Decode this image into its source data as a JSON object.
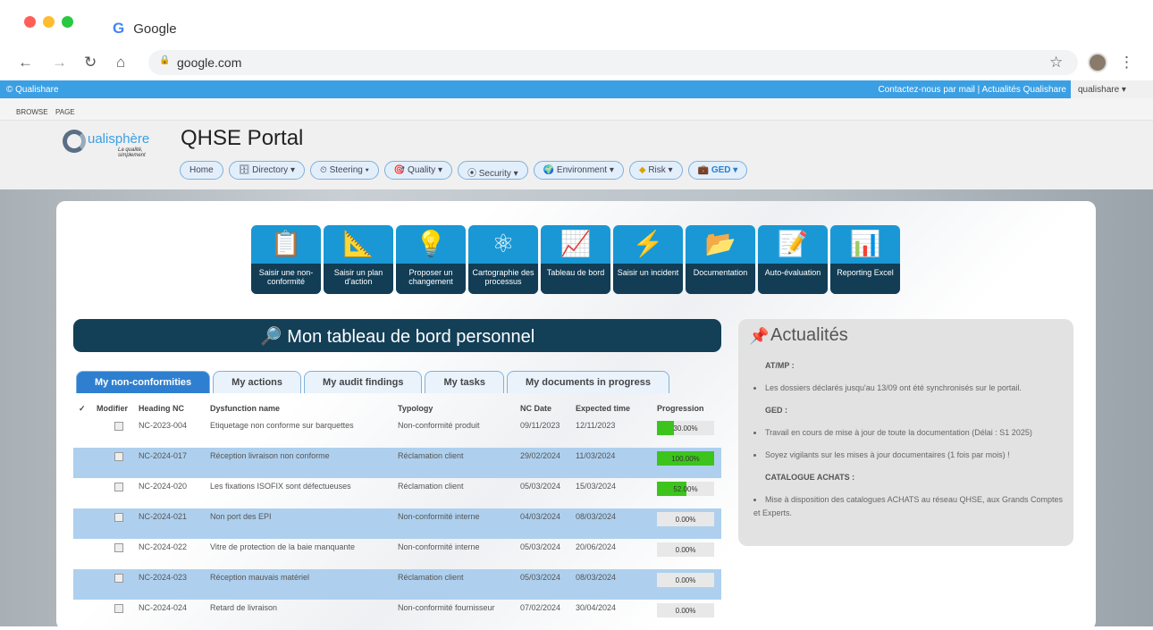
{
  "browser": {
    "tab_title": "Google",
    "url": "google.com"
  },
  "topbar": {
    "brand": "© Qualishare",
    "links": "Contactez-nous par mail | Actualités Qualishare",
    "user": "qualishare ▾"
  },
  "ribbon": {
    "browse": "BROWSE",
    "page": "PAGE"
  },
  "header": {
    "logo_text": "ualisphère",
    "logo_tagline": "La qualité, simplement",
    "title": "QHSE Portal",
    "menu": [
      {
        "label": "Home"
      },
      {
        "label": "Directory ▾",
        "icon": "🗄"
      },
      {
        "label": "Steering ▾",
        "icon": "⏲"
      },
      {
        "label": "Quality ▾",
        "icon": "🎯"
      },
      {
        "label": "Security ▾",
        "icon": "⦿"
      },
      {
        "label": "Environment ▾",
        "icon": "🌍"
      },
      {
        "label": "Risk ▾",
        "icon": "◆"
      },
      {
        "label": "GED ▾",
        "icon": "💼"
      }
    ]
  },
  "tiles": [
    {
      "icon": "📋",
      "label": "Saisir une non-conformité"
    },
    {
      "icon": "📐",
      "label": "Saisir un plan d'action"
    },
    {
      "icon": "💡",
      "label": "Proposer un changement"
    },
    {
      "icon": "⚛",
      "label": "Cartographie des processus"
    },
    {
      "icon": "📈",
      "label": "Tableau de bord"
    },
    {
      "icon": "⚡",
      "label": "Saisir un incident"
    },
    {
      "icon": "📂",
      "label": "Documentation"
    },
    {
      "icon": "📝",
      "label": "Auto-évaluation"
    },
    {
      "icon": "📊",
      "label": "Reporting Excel"
    }
  ],
  "dashboard": {
    "title": "🔎 Mon tableau de bord personnel"
  },
  "tabs": [
    {
      "label": "My non-conformities"
    },
    {
      "label": "My actions"
    },
    {
      "label": "My audit findings"
    },
    {
      "label": "My tasks"
    },
    {
      "label": "My documents in progress"
    }
  ],
  "table": {
    "headers": [
      "✓",
      "Modifier",
      "Heading NC",
      "Dysfunction name",
      "Typology",
      "NC Date",
      "Expected time",
      "Progression"
    ],
    "rows": [
      {
        "id": "NC-2023-004",
        "name": "Etiquetage non conforme sur barquettes",
        "type": "Non-conformité produit",
        "date": "09/11/2023",
        "expected": "12/11/2023",
        "progress": 30,
        "progress_label": "30.00%"
      },
      {
        "id": "NC-2024-017",
        "name": "Réception livraison non conforme",
        "type": "Réclamation client",
        "date": "29/02/2024",
        "expected": "11/03/2024",
        "progress": 100,
        "progress_label": "100.00%"
      },
      {
        "id": "NC-2024-020",
        "name": "Les fixations ISOFIX sont défectueuses",
        "type": "Réclamation client",
        "date": "05/03/2024",
        "expected": "15/03/2024",
        "progress": 52,
        "progress_label": "52.00%"
      },
      {
        "id": "NC-2024-021",
        "name": "Non port des EPI",
        "type": "Non-conformité interne",
        "date": "04/03/2024",
        "expected": "08/03/2024",
        "progress": 0,
        "progress_label": "0.00%"
      },
      {
        "id": "NC-2024-022",
        "name": "Vitre de protection de la baie manquante",
        "type": "Non-conformité interne",
        "date": "05/03/2024",
        "expected": "20/06/2024",
        "progress": 0,
        "progress_label": "0.00%"
      },
      {
        "id": "NC-2024-023",
        "name": "Réception mauvais matériel",
        "type": "Réclamation client",
        "date": "05/03/2024",
        "expected": "08/03/2024",
        "progress": 0,
        "progress_label": "0.00%"
      },
      {
        "id": "NC-2024-024",
        "name": "Retard de livraison",
        "type": "Non-conformité fournisseur",
        "date": "07/02/2024",
        "expected": "30/04/2024",
        "progress": 0,
        "progress_label": "0.00%"
      }
    ]
  },
  "news": {
    "title": "Actualités",
    "sections": [
      {
        "heading": "AT/MP :",
        "items": [
          "Les dossiers déclarés jusqu'au 13/09 ont été synchronisés sur le portail."
        ]
      },
      {
        "heading": "GED :",
        "items": [
          "Travail en cours de mise à jour de toute la documentation (Délai : S1 2025)",
          "Soyez vigilants sur les mises à jour documentaires (1 fois par mois) !"
        ]
      },
      {
        "heading": "CATALOGUE ACHATS :",
        "items": [
          "Mise à disposition des catalogues ACHATS au réseau QHSE, aux Grands Comptes et Experts."
        ]
      }
    ]
  },
  "colors": {
    "accent": "#3b9fe3",
    "tile": "#1a98d5",
    "dark": "#133f57",
    "progress": "#3cc41c",
    "row_alt": "#aed0ee"
  }
}
